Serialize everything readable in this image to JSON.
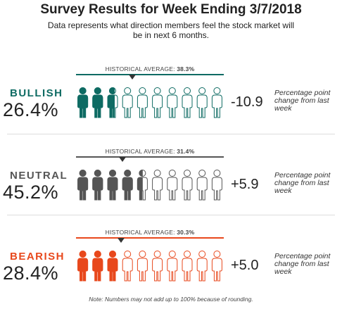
{
  "title": "Survey Results for Week Ending 3/7/2018",
  "subtitle": "Data represents what direction members feel the stock market will be in next 6 months.",
  "hist_prefix": "HISTORICAL AVERAGE:",
  "change_note": "Percentage point change from last week",
  "footnote": "Note: Numbers may not add up to 100% because of rounding.",
  "sections": [
    {
      "label": "BULLISH",
      "percent": "26.4%",
      "value": 26.4,
      "historical": "38.3%",
      "historical_value": 38.3,
      "change": "-10.9",
      "color": "#0e6b63"
    },
    {
      "label": "NEUTRAL",
      "percent": "45.2%",
      "value": 45.2,
      "historical": "31.4%",
      "historical_value": 31.4,
      "change": "+5.9",
      "color": "#555555"
    },
    {
      "label": "BEARISH",
      "percent": "28.4%",
      "value": 28.4,
      "historical": "30.3%",
      "historical_value": 30.3,
      "change": "+5.0",
      "color": "#e8481c"
    }
  ]
}
